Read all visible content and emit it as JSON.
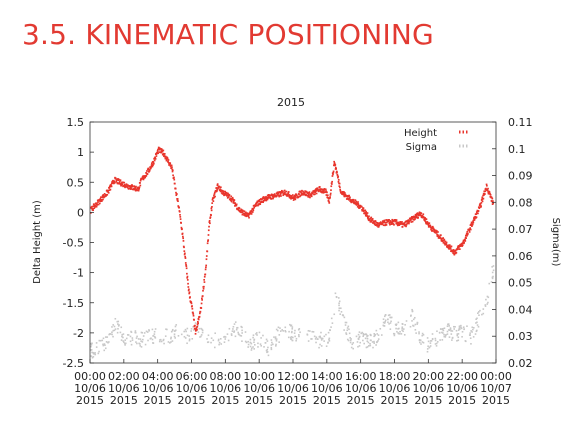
{
  "slide": {
    "title": "3.5. KINEMATIC POSITIONING"
  },
  "chart_data": {
    "type": "scatter",
    "title": "2015",
    "ylabel": "Delta Height (m)",
    "y2label": "Sigma(m)",
    "ylim": [
      -2.5,
      1.5
    ],
    "y2lim": [
      0.02,
      0.11
    ],
    "xlim_hours": [
      0,
      48
    ],
    "yticks": [
      "1.5",
      "1",
      "0.5",
      "0",
      "-0.5",
      "-1",
      "-1.5",
      "-2",
      "-2.5"
    ],
    "y2ticks": [
      "0.11",
      "0.1",
      "0.09",
      "0.08",
      "0.07",
      "0.06",
      "0.05",
      "0.04",
      "0.03",
      "0.02"
    ],
    "xticks": [
      {
        "time": "00:00",
        "date": "10/06",
        "year": "2015"
      },
      {
        "time": "02:00",
        "date": "10/06",
        "year": "2015"
      },
      {
        "time": "04:00",
        "date": "10/06",
        "year": "2015"
      },
      {
        "time": "06:00",
        "date": "10/06",
        "year": "2015"
      },
      {
        "time": "08:00",
        "date": "10/06",
        "year": "2015"
      },
      {
        "time": "10:00",
        "date": "10/06",
        "year": "2015"
      },
      {
        "time": "12:00",
        "date": "10/06",
        "year": "2015"
      },
      {
        "time": "14:00",
        "date": "10/06",
        "year": "2015"
      },
      {
        "time": "16:00",
        "date": "10/06",
        "year": "2015"
      },
      {
        "time": "18:00",
        "date": "10/06",
        "year": "2015"
      },
      {
        "time": "20:00",
        "date": "10/06",
        "year": "2015"
      },
      {
        "time": "22:00",
        "date": "10/06",
        "year": "2015"
      },
      {
        "time": "00:00",
        "date": "10/07",
        "year": "2015"
      }
    ],
    "legend_position": "top-right",
    "series": [
      {
        "name": "Height",
        "axis": "left",
        "color": "#e8352c",
        "hours": [
          0.0,
          0.5,
          1.0,
          1.4,
          1.8,
          2.2,
          2.8,
          3.0,
          3.4,
          3.7,
          4.0,
          4.3,
          4.5,
          4.8,
          5.0,
          5.2,
          5.4,
          5.6,
          5.8,
          6.0,
          6.2,
          6.5,
          6.8,
          7.0,
          7.2,
          7.5,
          7.8,
          8.3,
          8.8,
          9.3,
          9.8,
          10.3,
          11.0,
          11.5,
          12.0,
          12.5,
          13.0,
          13.5,
          13.9,
          14.1,
          14.4,
          14.8,
          15.5,
          16.0,
          16.5,
          17.0,
          17.5,
          18.0,
          18.5,
          19.0,
          19.5,
          20.0,
          20.5,
          21.0,
          21.5,
          22.0,
          22.5,
          23.0,
          23.4,
          23.8
        ],
        "values": [
          0.05,
          0.2,
          0.35,
          0.55,
          0.5,
          0.45,
          0.4,
          0.55,
          0.7,
          0.85,
          1.05,
          1.0,
          0.9,
          0.75,
          0.4,
          0.1,
          -0.3,
          -0.8,
          -1.3,
          -1.6,
          -2.0,
          -1.6,
          -0.9,
          -0.2,
          0.2,
          0.45,
          0.35,
          0.25,
          0.05,
          -0.05,
          0.15,
          0.25,
          0.3,
          0.35,
          0.25,
          0.35,
          0.3,
          0.4,
          0.35,
          0.2,
          0.85,
          0.35,
          0.2,
          0.1,
          -0.1,
          -0.2,
          -0.15,
          -0.15,
          -0.2,
          -0.1,
          0.0,
          -0.2,
          -0.35,
          -0.5,
          -0.65,
          -0.5,
          -0.2,
          0.1,
          0.45,
          0.15
        ]
      },
      {
        "name": "Sigma",
        "axis": "right",
        "color": "#c8c8c8",
        "hours": [
          0.0,
          0.8,
          1.5,
          2.0,
          2.5,
          3.0,
          3.5,
          4.0,
          4.5,
          5.0,
          5.5,
          6.0,
          6.3,
          6.8,
          7.3,
          7.8,
          8.5,
          9.0,
          9.5,
          10.0,
          10.5,
          11.0,
          11.5,
          12.0,
          12.5,
          13.0,
          13.5,
          14.0,
          14.5,
          15.0,
          15.5,
          16.0,
          16.5,
          17.0,
          17.5,
          18.0,
          18.5,
          19.0,
          19.5,
          20.0,
          20.5,
          21.0,
          21.5,
          22.0,
          22.5,
          23.0,
          23.5,
          23.9
        ],
        "values": [
          0.025,
          0.027,
          0.035,
          0.03,
          0.03,
          0.029,
          0.03,
          0.031,
          0.03,
          0.032,
          0.03,
          0.031,
          0.034,
          0.03,
          0.029,
          0.028,
          0.033,
          0.031,
          0.028,
          0.029,
          0.026,
          0.03,
          0.034,
          0.031,
          0.033,
          0.03,
          0.029,
          0.028,
          0.045,
          0.035,
          0.027,
          0.03,
          0.028,
          0.03,
          0.037,
          0.033,
          0.032,
          0.038,
          0.029,
          0.027,
          0.03,
          0.033,
          0.031,
          0.032,
          0.03,
          0.038,
          0.045,
          0.06
        ]
      }
    ]
  }
}
